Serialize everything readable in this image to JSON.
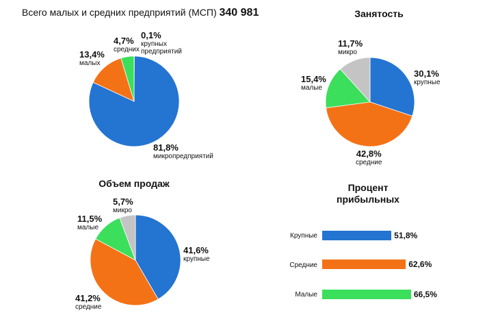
{
  "header": {
    "text": "Всего малых и средних предприятий (МСП)",
    "total": "340 981"
  },
  "chart_data": [
    {
      "type": "pie",
      "title": "",
      "slices": [
        {
          "pct": "0,1%",
          "sub": [
            "крупных",
            "предприятий"
          ],
          "value": 0.1,
          "color": "#bdbdbd"
        },
        {
          "pct": "81,8%",
          "sub": [
            "микропредприятий"
          ],
          "value": 81.8,
          "color": "#2474d2"
        },
        {
          "pct": "13,4%",
          "sub": [
            "малых"
          ],
          "value": 13.4,
          "color": "#f47216"
        },
        {
          "pct": "4,7%",
          "sub": [
            "средних"
          ],
          "value": 4.7,
          "color": "#3bdf5b"
        }
      ]
    },
    {
      "type": "pie",
      "title": "Занятость",
      "slices": [
        {
          "pct": "30,1%",
          "sub": [
            "крупные"
          ],
          "value": 30.1,
          "color": "#2474d2"
        },
        {
          "pct": "42,8%",
          "sub": [
            "средние"
          ],
          "value": 42.8,
          "color": "#f47216"
        },
        {
          "pct": "15,4%",
          "sub": [
            "малые"
          ],
          "value": 15.4,
          "color": "#3bdf5b"
        },
        {
          "pct": "11,7%",
          "sub": [
            "микро"
          ],
          "value": 11.7,
          "color": "#c4c4c4"
        }
      ]
    },
    {
      "type": "pie",
      "title": "Объем продаж",
      "slices": [
        {
          "pct": "41,6%",
          "sub": [
            "крупные"
          ],
          "value": 41.6,
          "color": "#2474d2"
        },
        {
          "pct": "41,2%",
          "sub": [
            "средние"
          ],
          "value": 41.2,
          "color": "#f47216"
        },
        {
          "pct": "11,5%",
          "sub": [
            "малые"
          ],
          "value": 11.5,
          "color": "#3bdf5b"
        },
        {
          "pct": "5,7%",
          "sub": [
            "микро"
          ],
          "value": 5.7,
          "color": "#c4c4c4"
        }
      ]
    },
    {
      "type": "bar",
      "title": "Процент прибыльных",
      "title_lines": [
        "Процент",
        "прибыльных"
      ],
      "categories": [
        "Крупные",
        "Средние",
        "Малые"
      ],
      "values": [
        51.8,
        62.6,
        66.5
      ],
      "value_labels": [
        "51,8%",
        "62,6%",
        "66,5%"
      ],
      "colors": [
        "#2474d2",
        "#f47216",
        "#3bdf5b"
      ]
    }
  ]
}
